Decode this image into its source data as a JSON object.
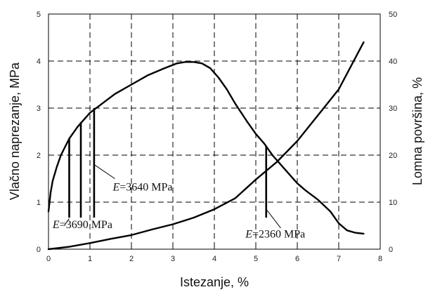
{
  "chart_data": {
    "type": "line",
    "xlabel": "Istezanje, %",
    "ylabel_left": "Vlačno naprezanje, MPa",
    "ylabel_right": "Lomna površina, %",
    "xlim": [
      0,
      8
    ],
    "ylim_left": [
      0,
      5
    ],
    "ylim_right": [
      0,
      50
    ],
    "x_ticks": [
      "0",
      "1",
      "2",
      "3",
      "4",
      "5",
      "6",
      "7",
      "8"
    ],
    "y_ticks_left": [
      "0",
      "1",
      "2",
      "3",
      "4",
      "5"
    ],
    "y_ticks_right": [
      "0",
      "10",
      "20",
      "30",
      "40",
      "50"
    ],
    "grid": true,
    "series": [
      {
        "axis": "left",
        "x": [
          0,
          0.05,
          0.1,
          0.2,
          0.3,
          0.5,
          0.7,
          1.0,
          1.3,
          1.6,
          2.0,
          2.4,
          2.8,
          3.1,
          3.3,
          3.5,
          3.7,
          3.9,
          4.1,
          4.3,
          4.5,
          4.8,
          5.0,
          5.2,
          5.4,
          5.6,
          5.8,
          6.0,
          6.2,
          6.5,
          6.8,
          7.0,
          7.2,
          7.4,
          7.6
        ],
        "y": [
          0.8,
          1.2,
          1.45,
          1.75,
          2.0,
          2.35,
          2.6,
          2.9,
          3.1,
          3.3,
          3.5,
          3.7,
          3.85,
          3.95,
          3.98,
          3.98,
          3.95,
          3.85,
          3.65,
          3.4,
          3.1,
          2.7,
          2.45,
          2.25,
          2.0,
          1.8,
          1.6,
          1.4,
          1.25,
          1.05,
          0.8,
          0.55,
          0.4,
          0.35,
          0.33
        ]
      },
      {
        "axis": "right",
        "x": [
          0,
          0.5,
          1.0,
          1.5,
          2.0,
          2.5,
          3.0,
          3.5,
          4.0,
          4.5,
          5.0,
          5.5,
          6.0,
          6.5,
          7.0,
          7.3,
          7.6
        ],
        "y": [
          0,
          0.5,
          1.3,
          2.2,
          3.0,
          4.2,
          5.3,
          6.7,
          8.5,
          10.8,
          14.8,
          18.5,
          23.0,
          28.5,
          34.0,
          39.0,
          44.0
        ]
      }
    ],
    "vertical_markers": [
      {
        "x": 0.5,
        "y_top": 2.35
      },
      {
        "x": 0.78,
        "y_top": 2.7
      },
      {
        "x": 1.1,
        "y_top": 3.0
      },
      {
        "x": 5.25,
        "y_top": 2.2
      }
    ],
    "annotations": [
      {
        "prefix": "E",
        "text": "=3640 MPa",
        "x": 1.55,
        "y": 1.25,
        "line_from": [
          1.1,
          1.8
        ],
        "line_to": [
          1.6,
          1.5
        ]
      },
      {
        "prefix": "E",
        "text": "=3690 MPa",
        "x": 0.1,
        "y": 0.45,
        "line_from": [
          0.5,
          0.65
        ],
        "line_to": [
          0.38,
          0.5
        ]
      },
      {
        "prefix": "E",
        "text": "=2360 MPa",
        "x": 4.75,
        "y": 0.25,
        "line_from": [
          5.25,
          0.85
        ],
        "line_to": [
          5.6,
          0.45
        ]
      }
    ]
  }
}
